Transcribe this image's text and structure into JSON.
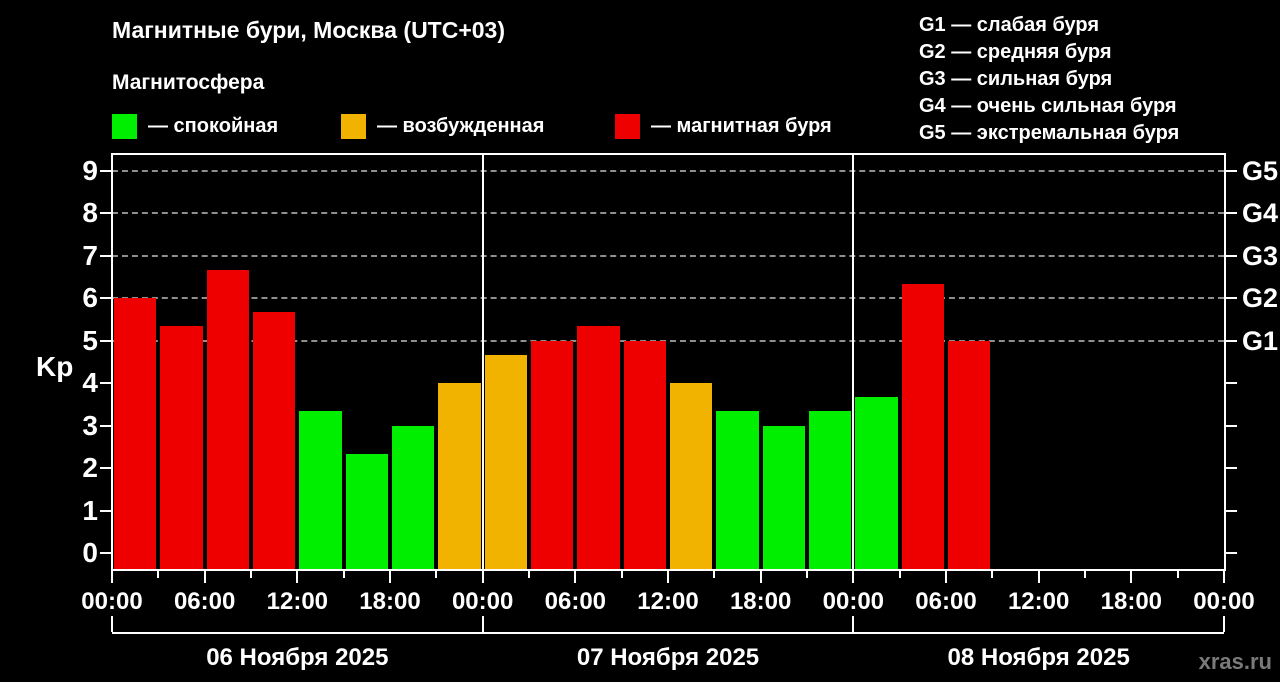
{
  "header": {
    "title": "Магнитные бури, Москва (UTC+03)",
    "subtitle": "Магнитосфера"
  },
  "legend": {
    "items": [
      {
        "state": "quiet",
        "label": "— спокойная",
        "color": "#00ee00"
      },
      {
        "state": "excited",
        "label": "— возбужденная",
        "color": "#f2b300"
      },
      {
        "state": "storm",
        "label": "— магнитная буря",
        "color": "#ee0000"
      }
    ]
  },
  "storm_scale": {
    "items": [
      "G1 — слабая буря",
      "G2 — средняя буря",
      "G3 — сильная буря",
      "G4 — очень сильная буря",
      "G5 — экстремальная буря"
    ]
  },
  "chart_data": {
    "type": "bar",
    "title": "Магнитные бури, Москва (UTC+03)",
    "ylabel": "Kp",
    "ylim": [
      0,
      9
    ],
    "yticks": [
      0,
      1,
      2,
      3,
      4,
      5,
      6,
      7,
      8,
      9
    ],
    "gridlines": [
      5,
      6,
      7,
      8,
      9
    ],
    "grid_style": "dashed",
    "right_axis": {
      "5": "G1",
      "6": "G2",
      "7": "G3",
      "8": "G4",
      "9": "G5"
    },
    "hours_per_bar": 3,
    "x_time_labels": [
      "00:00",
      "06:00",
      "12:00",
      "18:00",
      "00:00",
      "06:00",
      "12:00",
      "18:00",
      "00:00",
      "06:00",
      "12:00",
      "18:00",
      "00:00"
    ],
    "state_colors": {
      "quiet": "#00ee00",
      "excited": "#f2b300",
      "storm": "#ee0000"
    },
    "days": [
      {
        "date": "06 Ноября 2025",
        "bars": [
          {
            "kp": 6.0,
            "state": "storm"
          },
          {
            "kp": 5.33,
            "state": "storm"
          },
          {
            "kp": 6.67,
            "state": "storm"
          },
          {
            "kp": 5.67,
            "state": "storm"
          },
          {
            "kp": 3.33,
            "state": "quiet"
          },
          {
            "kp": 2.33,
            "state": "quiet"
          },
          {
            "kp": 3.0,
            "state": "quiet"
          },
          {
            "kp": 4.0,
            "state": "excited"
          }
        ]
      },
      {
        "date": "07 Ноября 2025",
        "bars": [
          {
            "kp": 4.67,
            "state": "excited"
          },
          {
            "kp": 5.0,
            "state": "storm"
          },
          {
            "kp": 5.33,
            "state": "storm"
          },
          {
            "kp": 5.0,
            "state": "storm"
          },
          {
            "kp": 4.0,
            "state": "excited"
          },
          {
            "kp": 3.33,
            "state": "quiet"
          },
          {
            "kp": 3.0,
            "state": "quiet"
          },
          {
            "kp": 3.33,
            "state": "quiet"
          }
        ]
      },
      {
        "date": "08 Ноября 2025",
        "bars": [
          {
            "kp": 3.67,
            "state": "quiet"
          },
          {
            "kp": 6.33,
            "state": "storm"
          },
          {
            "kp": 5.0,
            "state": "storm"
          }
        ]
      }
    ]
  },
  "watermark": "xras.ru"
}
